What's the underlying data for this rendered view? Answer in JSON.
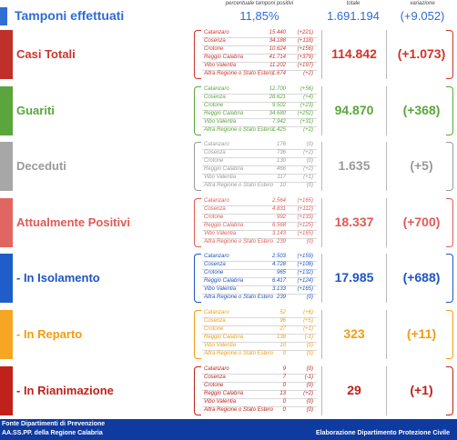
{
  "header": {
    "pct_label": "percentuale tamponi positivi",
    "tot_label": "totale",
    "var_label": "variazione"
  },
  "tamponi": {
    "label": "Tamponi effettuati",
    "pct": "11,85%",
    "total": "1.691.194",
    "variation": "(+9.052)",
    "color": "#2f6bd6"
  },
  "sections": [
    {
      "key": "casi-totali",
      "label": "Casi Totali",
      "color": "#d0342c",
      "bar": "#c0302a",
      "total": "114.842",
      "variation": "(+1.073)",
      "provinces": [
        {
          "name": "Catanzaro",
          "value": "15.440",
          "delta": "(+221)"
        },
        {
          "name": "Cosenza",
          "value": "34.188",
          "delta": "(+118)"
        },
        {
          "name": "Crotone",
          "value": "10.624",
          "delta": "(+156)"
        },
        {
          "name": "Reggio Calabria",
          "value": "41.714",
          "delta": "(+379)"
        },
        {
          "name": "Vibo Valentia",
          "value": "11.202",
          "delta": "(+197)"
        },
        {
          "name": "Altra Regione o Stato Estero",
          "value": "1.674",
          "delta": "(+2)"
        }
      ]
    },
    {
      "key": "guariti",
      "label": "Guariti",
      "color": "#5aa63c",
      "bar": "#5aa63c",
      "total": "94.870",
      "variation": "(+368)",
      "provinces": [
        {
          "name": "Catanzaro",
          "value": "12.700",
          "delta": "(+56)"
        },
        {
          "name": "Cosenza",
          "value": "28.621",
          "delta": "(+4)"
        },
        {
          "name": "Crotone",
          "value": "9.502",
          "delta": "(+23)"
        },
        {
          "name": "Reggio Calabria",
          "value": "34.680",
          "delta": "(+252)"
        },
        {
          "name": "Vibo Valentia",
          "value": "7.942",
          "delta": "(+31)"
        },
        {
          "name": "Altra Regione o Stato Estero",
          "value": "1.425",
          "delta": "(+2)"
        }
      ]
    },
    {
      "key": "deceduti",
      "label": "Deceduti",
      "color": "#9a9a9a",
      "bar": "#a7a7a7",
      "total": "1.635",
      "variation": "(+5)",
      "provinces": [
        {
          "name": "Catanzaro",
          "value": "176",
          "delta": "(0)"
        },
        {
          "name": "Cosenza",
          "value": "736",
          "delta": "(+2)"
        },
        {
          "name": "Crotone",
          "value": "130",
          "delta": "(0)"
        },
        {
          "name": "Reggio Calabria",
          "value": "466",
          "delta": "(+2)"
        },
        {
          "name": "Vibo Valentia",
          "value": "117",
          "delta": "(+1)"
        },
        {
          "name": "Altra Regione o Stato Estero",
          "value": "10",
          "delta": "(0)"
        }
      ]
    },
    {
      "key": "attualmente-positivi",
      "label": "Attualmente Positivi",
      "color": "#e05a55",
      "bar": "#e06661",
      "total": "18.337",
      "variation": "(+700)",
      "provinces": [
        {
          "name": "Catanzaro",
          "value": "2.564",
          "delta": "(+165)"
        },
        {
          "name": "Cosenza",
          "value": "4.831",
          "delta": "(+112)"
        },
        {
          "name": "Crotone",
          "value": "992",
          "delta": "(+133)"
        },
        {
          "name": "Reggio Calabria",
          "value": "6.568",
          "delta": "(+125)"
        },
        {
          "name": "Vibo Valentia",
          "value": "3.143",
          "delta": "(+165)"
        },
        {
          "name": "Altra Regione o Stato Estero",
          "value": "239",
          "delta": "(0)"
        }
      ]
    },
    {
      "key": "in-isolamento",
      "label": "- In Isolamento",
      "color": "#1f55c2",
      "bar": "#1f5dc8",
      "total": "17.985",
      "variation": "(+688)",
      "provinces": [
        {
          "name": "Catanzaro",
          "value": "2.503",
          "delta": "(+159)"
        },
        {
          "name": "Cosenza",
          "value": "4.728",
          "delta": "(+108)"
        },
        {
          "name": "Crotone",
          "value": "965",
          "delta": "(+132)"
        },
        {
          "name": "Reggio Calabria",
          "value": "6.417",
          "delta": "(+124)"
        },
        {
          "name": "Vibo Valentia",
          "value": "3.133",
          "delta": "(+165)"
        },
        {
          "name": "Altra Regione o Stato Estero",
          "value": "239",
          "delta": "(0)"
        }
      ]
    },
    {
      "key": "in-reparto",
      "label": "- In Reparto",
      "color": "#f39c12",
      "bar": "#f5a623",
      "total": "323",
      "variation": "(+11)",
      "provinces": [
        {
          "name": "Catanzaro",
          "value": "52",
          "delta": "(+6)"
        },
        {
          "name": "Cosenza",
          "value": "96",
          "delta": "(+5)"
        },
        {
          "name": "Crotone",
          "value": "27",
          "delta": "(+1)"
        },
        {
          "name": "Reggio Calabria",
          "value": "138",
          "delta": "(-1)"
        },
        {
          "name": "Vibo Valentia",
          "value": "10",
          "delta": "(0)"
        },
        {
          "name": "Altra Regione o Stato Estero",
          "value": "0",
          "delta": "(0)"
        }
      ]
    },
    {
      "key": "in-rianimazione",
      "label": "- In Rianimazione",
      "color": "#c0211a",
      "bar": "#c0211a",
      "total": "29",
      "variation": "(+1)",
      "provinces": [
        {
          "name": "Catanzaro",
          "value": "9",
          "delta": "(0)"
        },
        {
          "name": "Cosenza",
          "value": "7",
          "delta": "(-1)"
        },
        {
          "name": "Crotone",
          "value": "0",
          "delta": "(0)"
        },
        {
          "name": "Reggio Calabria",
          "value": "13",
          "delta": "(+2)"
        },
        {
          "name": "Vibo Valentia",
          "value": "0",
          "delta": "(0)"
        },
        {
          "name": "Altra Regione o Stato Estero",
          "value": "0",
          "delta": "(0)"
        }
      ]
    }
  ],
  "footer": {
    "line1": "Fonte Dipartimenti di Prevenzione",
    "line2": "AA.SS.PP.  della Regione Calabria",
    "right": "Elaborazione Dipartimento Protezione Civile"
  }
}
